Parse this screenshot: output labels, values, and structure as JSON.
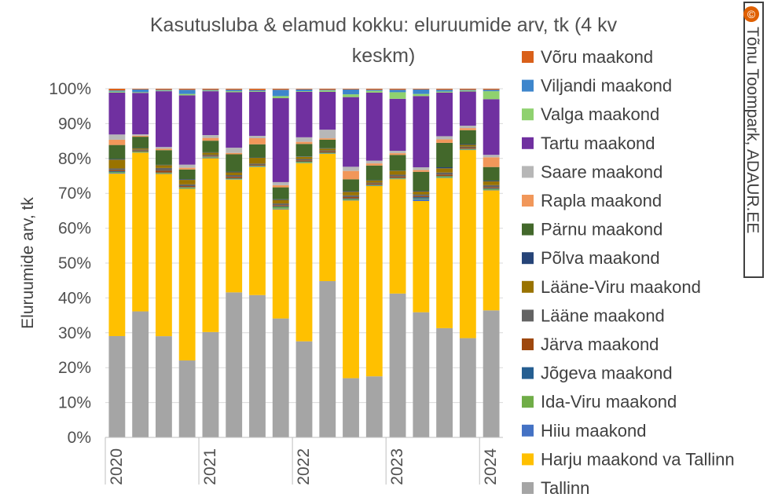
{
  "watermark": "Tõnu Toompark, ADAUR.EE",
  "copyright_symbol": "©",
  "chart_data": {
    "type": "bar",
    "stacked": true,
    "percent": true,
    "title_lines": [
      "Kasutusluba & elamud kokku: eluruumide arv, tk (4 kv",
      "keskm)"
    ],
    "ylabel": "Eluruumide arv, tk",
    "xlabel": "",
    "ylim": [
      0,
      100
    ],
    "y_ticks": [
      "0%",
      "10%",
      "20%",
      "30%",
      "40%",
      "50%",
      "60%",
      "70%",
      "80%",
      "90%",
      "100%"
    ],
    "categories": [
      "2020 Q1",
      "2020 Q2",
      "2020 Q3",
      "2020 Q4",
      "2021 Q1",
      "2021 Q2",
      "2021 Q3",
      "2021 Q4",
      "2022 Q1",
      "2022 Q2",
      "2022 Q3",
      "2022 Q4",
      "2023 Q1",
      "2023 Q2",
      "2023 Q3",
      "2023 Q4",
      "2024 Q1"
    ],
    "x_tick_labels": [
      {
        "index": 0,
        "label": "2020"
      },
      {
        "index": 4,
        "label": "2021"
      },
      {
        "index": 8,
        "label": "2022"
      },
      {
        "index": 12,
        "label": "2023"
      },
      {
        "index": 16,
        "label": "2024"
      }
    ],
    "grid": true,
    "legend_position": "right",
    "series": [
      {
        "name": "Tallinn",
        "color": "#A5A5A5",
        "values": [
          29,
          36.5,
          29,
          22.2,
          30,
          41.8,
          42,
          34,
          27.5,
          45.4,
          17,
          17.5,
          41.5,
          36,
          31.3,
          28.5,
          36.5
        ]
      },
      {
        "name": "Harju maakond va Tallinn",
        "color": "#FFC000",
        "values": [
          46.5,
          46,
          46.5,
          49.5,
          49.5,
          32.5,
          37.8,
          31.2,
          51,
          37,
          51,
          54.5,
          33,
          32,
          43,
          54,
          34.5
        ]
      },
      {
        "name": "Hiiu maakond",
        "color": "#4472C4",
        "values": [
          0.2,
          0.1,
          0.1,
          0.1,
          0.2,
          0.1,
          0.1,
          0.2,
          0.1,
          0.1,
          0.1,
          0.1,
          0.1,
          0.5,
          0.1,
          0.1,
          0.1
        ]
      },
      {
        "name": "Ida-Viru maakond",
        "color": "#70AD47",
        "values": [
          0.3,
          0.2,
          0.2,
          0.3,
          0.2,
          0.2,
          0.2,
          0.5,
          0.3,
          0.2,
          0.3,
          0.2,
          0.2,
          0.2,
          0.4,
          0.2,
          0.3
        ]
      },
      {
        "name": "Jõgeva maakond",
        "color": "#255E91",
        "values": [
          0.2,
          0.1,
          0.1,
          0.1,
          0.1,
          0.1,
          0.1,
          0.2,
          0.1,
          0.1,
          0.2,
          0.1,
          0.1,
          0.4,
          0.1,
          0.1,
          0.2
        ]
      },
      {
        "name": "Järva maakond",
        "color": "#9E480E",
        "values": [
          0.3,
          0.2,
          0.5,
          0.3,
          0.2,
          0.4,
          0.2,
          0.3,
          0.3,
          0.3,
          0.4,
          0.3,
          0.4,
          0.3,
          0.4,
          0.3,
          0.3
        ]
      },
      {
        "name": "Lääne maakond",
        "color": "#636363",
        "values": [
          0.5,
          0.3,
          0.8,
          0.5,
          0.3,
          0.5,
          0.4,
          0.5,
          0.4,
          0.3,
          0.5,
          0.3,
          0.5,
          0.5,
          0.6,
          0.3,
          0.6
        ]
      },
      {
        "name": "Lääne-Viru maakond",
        "color": "#997300",
        "values": [
          2.5,
          0.3,
          0.8,
          1.3,
          0.6,
          0.8,
          1.7,
          1,
          0.6,
          0.5,
          1,
          0.6,
          1.1,
          0.8,
          1.2,
          0.5,
          1.1
        ]
      },
      {
        "name": "Põlva maakond",
        "color": "#264478",
        "values": [
          0.2,
          0.1,
          0.1,
          0.2,
          0.1,
          0.2,
          0.1,
          0.2,
          0.1,
          0.1,
          0.2,
          0.1,
          0.1,
          0.2,
          0.3,
          0.2,
          0.2
        ]
      },
      {
        "name": "Pärnu maakond",
        "color": "#43682B",
        "values": [
          4,
          3.3,
          4.2,
          2.8,
          3.3,
          5,
          3.9,
          3.4,
          3.6,
          2.5,
          3.4,
          4.2,
          4.5,
          5.5,
          7,
          4,
          3.9
        ]
      },
      {
        "name": "Rapla maakond",
        "color": "#F1975A",
        "values": [
          1.5,
          0.3,
          0.4,
          0.5,
          0.8,
          0.4,
          1.8,
          0.6,
          0.6,
          0.4,
          2.4,
          0.6,
          0.5,
          0.5,
          1,
          0.6,
          2.8
        ]
      },
      {
        "name": "Saare maakond",
        "color": "#B7B7B7",
        "values": [
          1.5,
          0.4,
          0.5,
          0.9,
          0.8,
          1.5,
          0.7,
          0.9,
          1.3,
          2.5,
          1.2,
          0.8,
          0.7,
          0.8,
          0.9,
          0.7,
          0.7
        ]
      },
      {
        "name": "Tartu maakond",
        "color": "#7030A0",
        "values": [
          12,
          12,
          16,
          20,
          12.5,
          16,
          13,
          24,
          13,
          11,
          20,
          19.5,
          15,
          20.5,
          12.5,
          9.8,
          16
        ]
      },
      {
        "name": "Valga maakond",
        "color": "#8FD16F",
        "values": [
          0.3,
          0.2,
          0.2,
          0.4,
          0.2,
          0.3,
          0.2,
          0.6,
          0.2,
          0.4,
          0.8,
          0.5,
          1.9,
          0.6,
          0.3,
          0.3,
          2.3
        ]
      },
      {
        "name": "Viljandi maakond",
        "color": "#3E86CC",
        "values": [
          0.3,
          0.8,
          0.2,
          1.2,
          0.2,
          0.4,
          0.3,
          1.8,
          0.5,
          0.2,
          1.4,
          0.3,
          0.7,
          1.3,
          0.5,
          0.2,
          0.4
        ]
      },
      {
        "name": "Võru maakond",
        "color": "#D9601A",
        "values": [
          0.5,
          0.2,
          0.3,
          0.3,
          0.3,
          0.3,
          0.4,
          0.3,
          0.2,
          0.3,
          0.2,
          0.3,
          0.3,
          0.2,
          0.3,
          0.3,
          0.3
        ]
      }
    ]
  }
}
